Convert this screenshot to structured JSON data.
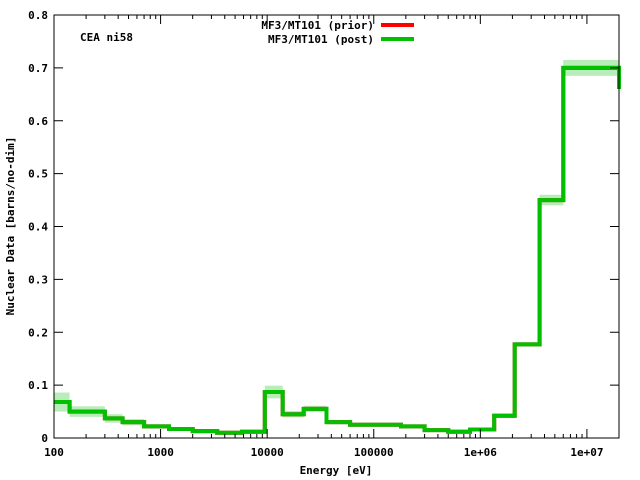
{
  "chart_data": {
    "type": "line",
    "xlabel": "Energy [eV]",
    "ylabel": "Nuclear Data [barns/no-dim]",
    "annotation": "CEA ni58",
    "xscale": "log",
    "xlim": [
      100,
      20000000
    ],
    "ylim": [
      0,
      0.8
    ],
    "grid": false,
    "legend_position": "top-center",
    "xticks": [
      100,
      1000,
      10000,
      100000,
      1000000,
      10000000
    ],
    "xtick_labels": [
      "100",
      "1000",
      "10000",
      "100000",
      "1e+06",
      "1e+07"
    ],
    "yticks": [
      0,
      0.1,
      0.2,
      0.3,
      0.4,
      0.5,
      0.6,
      0.7,
      0.8
    ],
    "ytick_labels": [
      "0",
      "0.1",
      "0.2",
      "0.3",
      "0.4",
      "0.5",
      "0.6",
      "0.7",
      "0.8"
    ],
    "bin_edges": [
      100,
      140,
      300,
      440,
      700,
      1200,
      2000,
      3400,
      5800,
      9500,
      14000,
      22000,
      36000,
      60000,
      100000,
      180000,
      300000,
      500000,
      800000,
      1350000,
      2100000,
      3600000,
      6000000,
      20000000
    ],
    "series": [
      {
        "name": "MF3/MT101 (prior)",
        "color": "#ff0000",
        "values": [
          0.068,
          0.05,
          0.037,
          0.03,
          0.022,
          0.017,
          0.013,
          0.01,
          0.012,
          0.087,
          0.045,
          0.055,
          0.03,
          0.025,
          0.025,
          0.022,
          0.015,
          0.012,
          0.016,
          0.042,
          0.177,
          0.45,
          0.7,
          0.66
        ]
      },
      {
        "name": "MF3/MT101 (post)",
        "color": "#00c000",
        "values": [
          0.068,
          0.05,
          0.037,
          0.03,
          0.022,
          0.017,
          0.013,
          0.01,
          0.012,
          0.087,
          0.045,
          0.055,
          0.03,
          0.025,
          0.025,
          0.022,
          0.015,
          0.012,
          0.016,
          0.042,
          0.177,
          0.45,
          0.7,
          0.66
        ],
        "uncertainty": [
          0.018,
          0.01,
          0.008,
          0.006,
          0.004,
          0.003,
          0.003,
          0.002,
          0.003,
          0.012,
          0.006,
          0.006,
          0.004,
          0.003,
          0.003,
          0.003,
          0.002,
          0.002,
          0.003,
          0.004,
          0.004,
          0.01,
          0.015,
          0.067
        ]
      }
    ],
    "band_color": "#b8ecb8"
  }
}
